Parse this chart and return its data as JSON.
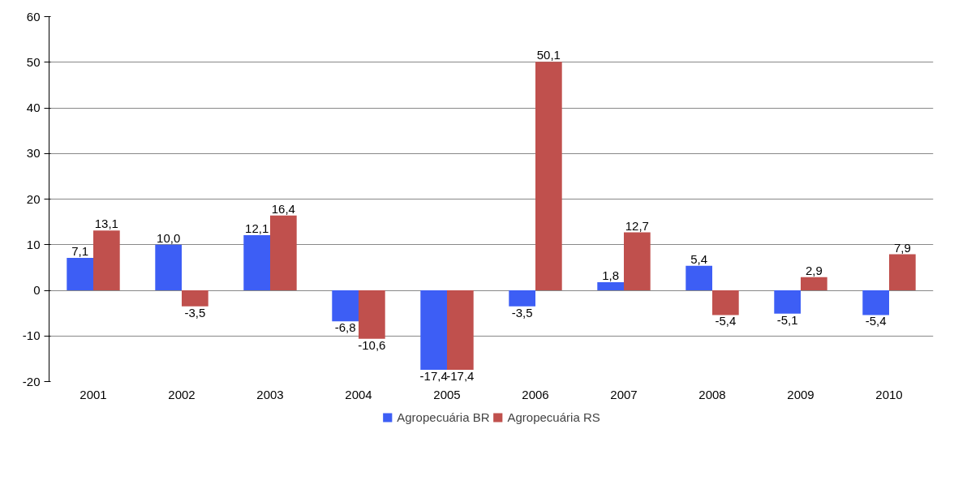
{
  "chart_data": {
    "type": "bar",
    "categories": [
      "2001",
      "2002",
      "2003",
      "2004",
      "2005",
      "2006",
      "2007",
      "2008",
      "2009",
      "2010"
    ],
    "series": [
      {
        "name": "Agropecuária BR",
        "color": "#3d5ef5",
        "values": [
          7.1,
          10.0,
          12.1,
          -6.8,
          -17.4,
          -3.5,
          1.8,
          5.4,
          -5.1,
          -5.4
        ],
        "value_labels": [
          "7,1",
          "10,0",
          "12,1",
          "-6,8",
          "-17,4",
          "-3,5",
          "1,8",
          "5,4",
          "-5,1",
          "-5,4"
        ]
      },
      {
        "name": "Agropecuária RS",
        "color": "#c0504d",
        "values": [
          13.1,
          -3.5,
          16.4,
          -10.6,
          -17.4,
          50.1,
          12.7,
          -5.4,
          2.9,
          7.9
        ],
        "value_labels": [
          "13,1",
          "-3,5",
          "16,4",
          "-10,6",
          "-17,4",
          "50,1",
          "12,7",
          "-5,4",
          "2,9",
          "7,9"
        ]
      }
    ],
    "ylim": [
      -20,
      60
    ],
    "yticks": [
      -20,
      -10,
      0,
      10,
      20,
      30,
      40,
      50,
      60
    ],
    "grid": "y",
    "legend": "bottom"
  }
}
